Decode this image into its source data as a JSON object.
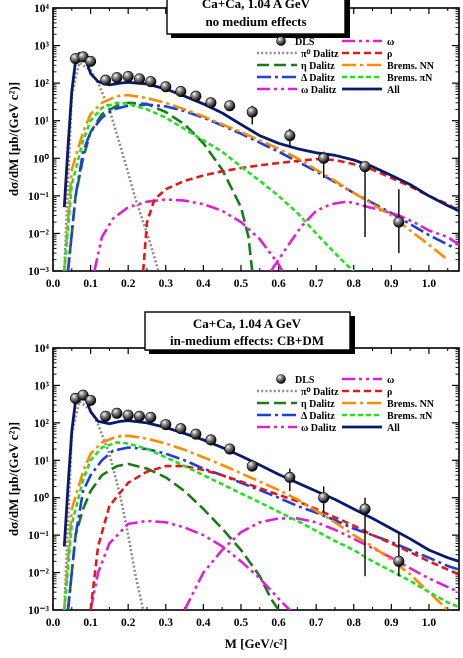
{
  "chart_data": [
    {
      "type": "line",
      "title_lines": [
        "Ca+Ca,  1.04 A GeV",
        "no medium effects"
      ],
      "xlabel": "",
      "ylabel": "dσ/dM  [μb/(GeV c²)]",
      "xlim": [
        0.0,
        1.08
      ],
      "ylim": [
        0.001,
        10000
      ],
      "yscale": "log",
      "xticks": [
        "0.0",
        "0.1",
        "0.2",
        "0.3",
        "0.4",
        "0.5",
        "0.6",
        "0.7",
        "0.8",
        "0.9",
        "1.0"
      ],
      "yticks": [
        "10⁻³",
        "10⁻²",
        "10⁻¹",
        "10⁰",
        "10¹",
        "10²",
        "10³",
        "10⁴"
      ],
      "legend_position": "top-right",
      "data_points": {
        "name": "DLS",
        "x": [
          0.06,
          0.08,
          0.1,
          0.14,
          0.17,
          0.2,
          0.23,
          0.26,
          0.3,
          0.34,
          0.38,
          0.42,
          0.47,
          0.53,
          0.63,
          0.72,
          0.83,
          0.92
        ],
        "y": [
          450,
          500,
          380,
          120,
          140,
          150,
          130,
          110,
          80,
          60,
          45,
          30,
          25,
          17,
          4,
          1,
          0.6,
          0.02
        ],
        "yerr_low": [
          null,
          null,
          null,
          null,
          null,
          null,
          null,
          null,
          null,
          null,
          null,
          null,
          null,
          8,
          2,
          0.3,
          0.008,
          0.003
        ],
        "yerr_high": [
          null,
          null,
          null,
          null,
          null,
          null,
          null,
          null,
          null,
          null,
          null,
          null,
          null,
          25,
          6,
          1.5,
          0.8,
          0.15
        ]
      },
      "series": [
        {
          "name": "π⁰ Dalitz",
          "color": "#8c8c8c",
          "dash": "2,2.2",
          "width": 2.6,
          "x": [
            0.03,
            0.05,
            0.07,
            0.1,
            0.12,
            0.15,
            0.18,
            0.2,
            0.22,
            0.24,
            0.26,
            0.28
          ],
          "y": [
            0.001,
            50,
            350,
            220,
            100,
            20,
            2,
            0.4,
            0.08,
            0.02,
            0.005,
            0.001
          ]
        },
        {
          "name": "η Dalitz",
          "color": "#1a7a1a",
          "dash": "12,5",
          "width": 2.6,
          "x": [
            0.04,
            0.06,
            0.08,
            0.1,
            0.13,
            0.17,
            0.2,
            0.25,
            0.3,
            0.35,
            0.4,
            0.45,
            0.5,
            0.52,
            0.53
          ],
          "y": [
            0.001,
            0.1,
            1,
            5,
            15,
            25,
            30,
            28,
            17,
            8,
            2.5,
            0.5,
            0.05,
            0.008,
            0.001
          ]
        },
        {
          "name": "Δ Dalitz",
          "color": "#1f3fd6",
          "dash": "14,4,3,4",
          "width": 2.6,
          "x": [
            0.04,
            0.06,
            0.08,
            0.1,
            0.13,
            0.16,
            0.2,
            0.25,
            0.3,
            0.35,
            0.4,
            0.45,
            0.5,
            0.6,
            0.7,
            0.8,
            0.9,
            1.0,
            1.07
          ],
          "y": [
            0.001,
            0.1,
            1.5,
            5,
            12,
            20,
            25,
            27,
            24,
            18,
            12,
            7.5,
            4.5,
            1.5,
            0.45,
            0.12,
            0.035,
            0.009,
            0.004
          ]
        },
        {
          "name": "ω Dalitz",
          "color": "#e020d0",
          "dash": "13,4,3,4,3,4",
          "width": 2.6,
          "x": [
            0.11,
            0.13,
            0.16,
            0.2,
            0.25,
            0.3,
            0.35,
            0.4,
            0.45,
            0.5,
            0.55,
            0.6,
            0.61
          ],
          "y": [
            0.001,
            0.008,
            0.025,
            0.05,
            0.07,
            0.08,
            0.075,
            0.06,
            0.04,
            0.02,
            0.007,
            0.0015,
            0.001
          ]
        },
        {
          "name": "ω",
          "color": "#e020d0",
          "dash": "13,4,3,4,3,4",
          "width": 2.6,
          "x": [
            0.58,
            0.62,
            0.66,
            0.7,
            0.74,
            0.78,
            0.8,
            0.84,
            0.88,
            0.92,
            0.96,
            1.0,
            1.05,
            1.08
          ],
          "y": [
            0.001,
            0.004,
            0.015,
            0.04,
            0.06,
            0.07,
            0.065,
            0.05,
            0.04,
            0.03,
            0.02,
            0.012,
            0.008,
            0.005
          ]
        },
        {
          "name": "ρ",
          "color": "#e01a1a",
          "dash": "7,4",
          "width": 2.6,
          "x": [
            0.24,
            0.25,
            0.27,
            0.3,
            0.35,
            0.4,
            0.45,
            0.5,
            0.55,
            0.6,
            0.65,
            0.7,
            0.75,
            0.8,
            0.85,
            0.9,
            0.95,
            1.0,
            1.05,
            1.08
          ],
          "y": [
            0.001,
            0.02,
            0.08,
            0.15,
            0.25,
            0.35,
            0.45,
            0.55,
            0.65,
            0.75,
            0.85,
            0.95,
            0.9,
            0.7,
            0.5,
            0.3,
            0.18,
            0.1,
            0.06,
            0.04
          ]
        },
        {
          "name": "Brems. NN",
          "color": "#ff8c00",
          "dash": "14,4,3,4",
          "width": 2.6,
          "x": [
            0.03,
            0.05,
            0.08,
            0.1,
            0.13,
            0.17,
            0.2,
            0.25,
            0.3,
            0.35,
            0.4,
            0.45,
            0.5,
            0.55,
            0.6,
            0.65,
            0.7,
            0.75,
            0.8,
            0.85,
            0.9,
            0.95,
            1.0,
            1.05
          ],
          "y": [
            0.001,
            0.5,
            5,
            15,
            30,
            45,
            48,
            40,
            30,
            20,
            13,
            8,
            5,
            3,
            1.8,
            1.0,
            0.5,
            0.25,
            0.12,
            0.06,
            0.03,
            0.012,
            0.005,
            0.002
          ]
        },
        {
          "name": "Brems. πN",
          "color": "#22e022",
          "dash": "5,3",
          "width": 2.6,
          "x": [
            0.03,
            0.05,
            0.08,
            0.1,
            0.13,
            0.17,
            0.2,
            0.25,
            0.3,
            0.35,
            0.4,
            0.45,
            0.5,
            0.55,
            0.6,
            0.65,
            0.7,
            0.75,
            0.78,
            0.8
          ],
          "y": [
            0.001,
            0.2,
            3,
            10,
            22,
            30,
            28,
            20,
            12,
            6,
            3,
            1.5,
            0.6,
            0.25,
            0.1,
            0.035,
            0.01,
            0.003,
            0.0015,
            0.001
          ]
        },
        {
          "name": "All",
          "color": "#0a1a6a",
          "dash": "",
          "width": 2.8,
          "x": [
            0.03,
            0.04,
            0.05,
            0.06,
            0.07,
            0.08,
            0.09,
            0.1,
            0.12,
            0.15,
            0.18,
            0.2,
            0.25,
            0.3,
            0.35,
            0.4,
            0.45,
            0.5,
            0.55,
            0.6,
            0.65,
            0.7,
            0.75,
            0.8,
            0.85,
            0.9,
            0.95,
            1.0,
            1.05,
            1.08
          ],
          "y": [
            0.05,
            2,
            60,
            400,
            620,
            550,
            350,
            180,
            110,
            90,
            100,
            105,
            95,
            70,
            45,
            28,
            16,
            8,
            4,
            2.5,
            1.8,
            1.4,
            1.2,
            0.9,
            0.6,
            0.35,
            0.2,
            0.1,
            0.055,
            0.04
          ]
        }
      ]
    },
    {
      "type": "line",
      "title_lines": [
        "Ca+Ca,  1.04 A GeV",
        "in-medium effects: CB+DM"
      ],
      "xlabel": "M [GeV/c²]",
      "ylabel": "dσ/dM  [μb/(GeV c²)]",
      "xlim": [
        0.0,
        1.08
      ],
      "ylim": [
        0.001,
        10000
      ],
      "yscale": "log",
      "xticks": [
        "0.0",
        "0.1",
        "0.2",
        "0.3",
        "0.4",
        "0.5",
        "0.6",
        "0.7",
        "0.8",
        "0.9",
        "1.0"
      ],
      "yticks": [
        "10⁻³",
        "10⁻²",
        "10⁻¹",
        "10⁰",
        "10¹",
        "10²",
        "10³",
        "10⁴"
      ],
      "legend_position": "top-right",
      "data_points": {
        "name": "DLS",
        "x": [
          0.06,
          0.08,
          0.1,
          0.14,
          0.17,
          0.2,
          0.23,
          0.26,
          0.3,
          0.34,
          0.38,
          0.42,
          0.47,
          0.53,
          0.63,
          0.72,
          0.83,
          0.92
        ],
        "y": [
          450,
          550,
          400,
          150,
          180,
          160,
          150,
          140,
          90,
          70,
          50,
          35,
          20,
          7,
          3.5,
          1,
          0.5,
          0.02
        ],
        "yerr_low": [
          null,
          null,
          null,
          null,
          null,
          null,
          null,
          null,
          null,
          null,
          null,
          null,
          null,
          null,
          1.5,
          0.4,
          0.008,
          0.008
        ],
        "yerr_high": [
          null,
          null,
          null,
          null,
          null,
          null,
          null,
          null,
          null,
          null,
          null,
          null,
          null,
          null,
          6,
          2,
          1,
          0.12
        ]
      },
      "series": [
        {
          "name": "π⁰ Dalitz",
          "color": "#8c8c8c",
          "dash": "2,2.2",
          "width": 2.6,
          "x": [
            0.03,
            0.05,
            0.07,
            0.1,
            0.12,
            0.15,
            0.18,
            0.2,
            0.22,
            0.24
          ],
          "y": [
            0.001,
            50,
            380,
            220,
            90,
            15,
            1,
            0.1,
            0.008,
            0.001
          ]
        },
        {
          "name": "η Dalitz",
          "color": "#1a7a1a",
          "dash": "12,5",
          "width": 2.6,
          "x": [
            0.04,
            0.06,
            0.08,
            0.1,
            0.13,
            0.17,
            0.2,
            0.25,
            0.3,
            0.35,
            0.4,
            0.45,
            0.5,
            0.55,
            0.58,
            0.6
          ],
          "y": [
            0.001,
            0.1,
            0.5,
            1.5,
            4,
            7,
            8,
            6,
            3.5,
            1.5,
            0.5,
            0.15,
            0.04,
            0.008,
            0.002,
            0.001
          ]
        },
        {
          "name": "Δ Dalitz",
          "color": "#1f3fd6",
          "dash": "14,4,3,4",
          "width": 2.6,
          "x": [
            0.04,
            0.06,
            0.08,
            0.1,
            0.13,
            0.16,
            0.2,
            0.25,
            0.3,
            0.35,
            0.4,
            0.45,
            0.5,
            0.55,
            0.6,
            0.65,
            0.7,
            0.75,
            0.8,
            0.85,
            0.9,
            0.95,
            1.0,
            1.05,
            1.08
          ],
          "y": [
            0.001,
            0.1,
            1.5,
            4,
            10,
            18,
            22,
            20,
            15,
            10,
            6,
            4,
            2.5,
            1.6,
            1.0,
            0.6,
            0.4,
            0.25,
            0.15,
            0.1,
            0.065,
            0.04,
            0.025,
            0.015,
            0.012
          ]
        },
        {
          "name": "ω Dalitz",
          "color": "#e020d0",
          "dash": "13,4,3,4,3,4",
          "width": 2.6,
          "x": [
            0.1,
            0.12,
            0.15,
            0.2,
            0.25,
            0.3,
            0.35,
            0.4,
            0.45,
            0.5,
            0.55,
            0.6,
            0.63,
            0.65
          ],
          "y": [
            0.001,
            0.01,
            0.06,
            0.2,
            0.24,
            0.22,
            0.16,
            0.1,
            0.05,
            0.02,
            0.007,
            0.002,
            0.001,
            0.0006
          ]
        },
        {
          "name": "ω",
          "color": "#e020d0",
          "dash": "13,4,3,4,3,4",
          "width": 2.6,
          "x": [
            0.35,
            0.4,
            0.45,
            0.5,
            0.55,
            0.6,
            0.65,
            0.7,
            0.75,
            0.8,
            0.85,
            0.9,
            0.95,
            1.0,
            1.08
          ],
          "y": [
            0.001,
            0.01,
            0.04,
            0.12,
            0.22,
            0.28,
            0.28,
            0.22,
            0.14,
            0.08,
            0.045,
            0.025,
            0.013,
            0.007,
            0.003
          ]
        },
        {
          "name": "ρ",
          "color": "#e01a1a",
          "dash": "7,4",
          "width": 2.6,
          "x": [
            0.1,
            0.12,
            0.15,
            0.2,
            0.25,
            0.3,
            0.35,
            0.4,
            0.45,
            0.5,
            0.55,
            0.6,
            0.65,
            0.7,
            0.75,
            0.8,
            0.85,
            0.9,
            0.95,
            1.0,
            1.05,
            1.08
          ],
          "y": [
            0.001,
            0.05,
            0.6,
            2.5,
            5,
            7,
            7,
            5.5,
            4,
            2.7,
            1.8,
            1.2,
            0.8,
            0.5,
            0.3,
            0.18,
            0.1,
            0.06,
            0.035,
            0.02,
            0.012,
            0.009
          ]
        },
        {
          "name": "Brems. NN",
          "color": "#ff8c00",
          "dash": "14,4,3,4",
          "width": 2.6,
          "x": [
            0.03,
            0.05,
            0.08,
            0.1,
            0.13,
            0.17,
            0.2,
            0.25,
            0.3,
            0.35,
            0.4,
            0.45,
            0.5,
            0.55,
            0.6,
            0.65,
            0.7,
            0.75,
            0.8,
            0.85,
            0.9,
            0.95,
            1.0,
            1.05
          ],
          "y": [
            0.001,
            0.5,
            5,
            15,
            30,
            43,
            45,
            38,
            28,
            19,
            12,
            7.5,
            4.5,
            2.7,
            1.6,
            0.9,
            0.45,
            0.22,
            0.1,
            0.05,
            0.022,
            0.009,
            0.003,
            0.001
          ]
        },
        {
          "name": "Brems. πN",
          "color": "#22e022",
          "dash": "5,3",
          "width": 2.6,
          "x": [
            0.03,
            0.05,
            0.08,
            0.1,
            0.13,
            0.17,
            0.2,
            0.25,
            0.3,
            0.35,
            0.4,
            0.45,
            0.5,
            0.55,
            0.6,
            0.65,
            0.7,
            0.75,
            0.8,
            0.85,
            0.9,
            0.95,
            1.0,
            1.05,
            1.08
          ],
          "y": [
            0.001,
            0.2,
            3,
            10,
            22,
            30,
            28,
            20,
            12,
            7,
            4,
            2.3,
            1.3,
            0.75,
            0.42,
            0.24,
            0.13,
            0.07,
            0.04,
            0.02,
            0.011,
            0.006,
            0.003,
            0.0016,
            0.0012
          ]
        },
        {
          "name": "All",
          "color": "#0a1a6a",
          "dash": "",
          "width": 2.8,
          "x": [
            0.03,
            0.04,
            0.05,
            0.06,
            0.07,
            0.08,
            0.09,
            0.1,
            0.12,
            0.15,
            0.18,
            0.2,
            0.25,
            0.3,
            0.35,
            0.4,
            0.45,
            0.5,
            0.55,
            0.6,
            0.65,
            0.7,
            0.75,
            0.8,
            0.85,
            0.9,
            0.95,
            1.0,
            1.05,
            1.08
          ],
          "y": [
            0.05,
            2,
            60,
            400,
            620,
            560,
            380,
            200,
            110,
            95,
            110,
            115,
            100,
            75,
            52,
            35,
            22,
            13,
            7.5,
            4.2,
            2.5,
            1.5,
            0.9,
            0.5,
            0.28,
            0.15,
            0.08,
            0.04,
            0.025,
            0.02
          ]
        }
      ]
    }
  ]
}
